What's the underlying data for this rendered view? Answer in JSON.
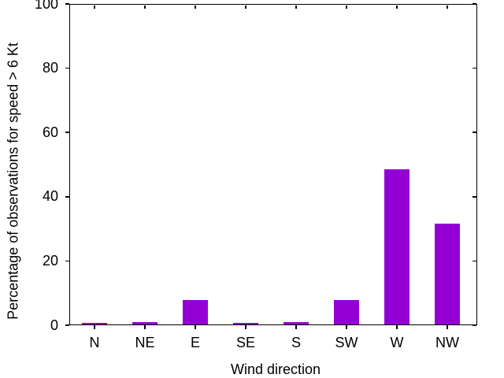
{
  "chart_data": {
    "type": "bar",
    "categories": [
      "N",
      "NE",
      "E",
      "SE",
      "S",
      "SW",
      "W",
      "NW"
    ],
    "values": [
      0.7,
      1.1,
      7.8,
      0.7,
      1.1,
      7.8,
      48.5,
      31.5
    ],
    "xlabel": "Wind direction",
    "ylabel": "Percentage of observations for speed > 6 Kt",
    "ylim": [
      0,
      100
    ],
    "yticks": [
      0,
      20,
      40,
      60,
      80,
      100
    ],
    "bar_color": "#9400D3",
    "axis_color": "#000000",
    "grid": false,
    "legend": false
  }
}
